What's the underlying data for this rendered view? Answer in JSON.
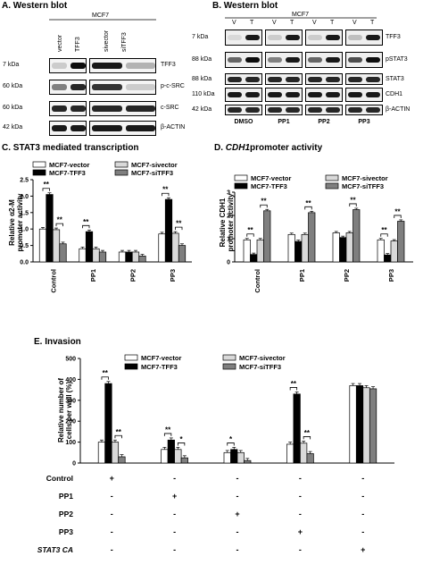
{
  "panelA": {
    "title": "A. Western blot",
    "cell_line": "MCF7",
    "lanes": [
      "vector",
      "TFF3",
      "sivector",
      "siTFF3"
    ],
    "rows": [
      {
        "kda": "7 kDa",
        "protein": "TFF3",
        "intensity": [
          0.2,
          0.95,
          0.9,
          0.3
        ]
      },
      {
        "kda": "60 kDa",
        "protein": "p-c-SRC",
        "intensity": [
          0.5,
          0.85,
          0.8,
          0.2
        ]
      },
      {
        "kda": "60 kDa",
        "protein": "c-SRC",
        "intensity": [
          0.85,
          0.85,
          0.85,
          0.85
        ]
      },
      {
        "kda": "42 kDa",
        "protein": "β-ACTIN",
        "intensity": [
          0.9,
          0.9,
          0.9,
          0.9
        ]
      }
    ]
  },
  "panelB": {
    "title": "B. Western blot",
    "cell_line": "MCF7",
    "lane_letters": [
      "V",
      "T",
      "V",
      "T",
      "V",
      "T",
      "V",
      "T"
    ],
    "groups": [
      "DMSO",
      "PP1",
      "PP2",
      "PP3"
    ],
    "rows": [
      {
        "kda": "7 kDa",
        "protein": "TFF3"
      },
      {
        "kda": "88 kDa",
        "protein": "pSTAT3"
      },
      {
        "kda": "88 kDa",
        "protein": "STAT3"
      },
      {
        "kda": "110 kDa",
        "protein": "CDH1"
      },
      {
        "kda": "42 kDa",
        "protein": "β-ACTIN"
      }
    ]
  },
  "panelC": {
    "title": "C. STAT3 mediated transcription",
    "ylabel_line1": "Relative α2-M",
    "ylabel_line2": "promoter activity"
  },
  "panelD": {
    "title_prefix": "D. ",
    "title_italic": "CDH1",
    "title_suffix": "promoter activity",
    "ylabel_line1": "Relative CDH1",
    "ylabel_line2": "promoter activity"
  },
  "panelE": {
    "title": "E. Invasion",
    "ylabel_line1": "Relative number of",
    "ylabel_line2": "cells per well (%)",
    "conditions": [
      "Control",
      "PP1",
      "PP2",
      "PP3",
      "STAT3 CA"
    ],
    "signs": [
      [
        "+",
        "-",
        "-",
        "-",
        "-"
      ],
      [
        "-",
        "+",
        "-",
        "-",
        "-"
      ],
      [
        "-",
        "-",
        "+",
        "-",
        "-"
      ],
      [
        "-",
        "-",
        "-",
        "+",
        "-"
      ],
      [
        "-",
        "-",
        "-",
        "-",
        "+"
      ]
    ]
  },
  "legend_labels": [
    "MCF7-vector",
    "MCF7-TFF3",
    "MCF7-sivector",
    "MCF7-siTFF3"
  ],
  "series_colors": [
    "#ffffff",
    "#000000",
    "#d9d9d9",
    "#7f7f7f"
  ],
  "chart_data": [
    {
      "type": "bar",
      "ylabel": "Relative α2-M promoter activity",
      "categories": [
        "Control",
        "PP1",
        "PP2",
        "PP3"
      ],
      "series": [
        {
          "name": "MCF7-vector",
          "values": [
            1.0,
            0.4,
            0.3,
            0.85
          ]
        },
        {
          "name": "MCF7-TFF3",
          "values": [
            2.05,
            0.92,
            0.3,
            1.9
          ]
        },
        {
          "name": "MCF7-sivector",
          "values": [
            0.98,
            0.4,
            0.3,
            0.87
          ]
        },
        {
          "name": "MCF7-siTFF3",
          "values": [
            0.55,
            0.3,
            0.18,
            0.5
          ]
        }
      ],
      "ylim": [
        0,
        2.5
      ],
      "yticks": [
        "0.0",
        "0.5",
        "1.0",
        "1.5",
        "2.0",
        "2.5"
      ],
      "significance": [
        {
          "cat": 0,
          "pair": [
            0,
            1
          ],
          "label": "**"
        },
        {
          "cat": 0,
          "pair": [
            2,
            3
          ],
          "label": "**"
        },
        {
          "cat": 1,
          "pair": [
            0,
            1
          ],
          "label": "**"
        },
        {
          "cat": 3,
          "pair": [
            0,
            1
          ],
          "label": "**"
        },
        {
          "cat": 3,
          "pair": [
            2,
            3
          ],
          "label": "**"
        }
      ]
    },
    {
      "type": "bar",
      "ylabel": "Relative CDH1 promoter activity",
      "categories": [
        "Control",
        "PP1",
        "PP2",
        "PP3"
      ],
      "series": [
        {
          "name": "MCF7-vector",
          "values": [
            0.95,
            1.18,
            1.25,
            0.95
          ]
        },
        {
          "name": "MCF7-TFF3",
          "values": [
            0.32,
            0.88,
            1.05,
            0.3
          ]
        },
        {
          "name": "MCF7-sivector",
          "values": [
            0.95,
            1.18,
            1.25,
            0.9
          ]
        },
        {
          "name": "MCF7-siTFF3",
          "values": [
            2.2,
            2.12,
            2.25,
            1.75
          ]
        }
      ],
      "ylim": [
        0,
        3
      ],
      "yticks": [
        "0",
        "1",
        "2",
        "3"
      ],
      "significance": [
        {
          "cat": 0,
          "pair": [
            0,
            1
          ],
          "label": "**"
        },
        {
          "cat": 0,
          "pair": [
            2,
            3
          ],
          "label": "**"
        },
        {
          "cat": 1,
          "pair": [
            2,
            3
          ],
          "label": "**"
        },
        {
          "cat": 2,
          "pair": [
            2,
            3
          ],
          "label": "**"
        },
        {
          "cat": 3,
          "pair": [
            0,
            1
          ],
          "label": "**"
        },
        {
          "cat": 3,
          "pair": [
            2,
            3
          ],
          "label": "**"
        }
      ]
    },
    {
      "type": "bar",
      "ylabel": "Relative number of cells per well (%)",
      "categories": [
        "Control",
        "PP1",
        "PP2",
        "PP3",
        "STAT3 CA"
      ],
      "series": [
        {
          "name": "MCF7-vector",
          "values": [
            100,
            65,
            50,
            90,
            370
          ]
        },
        {
          "name": "MCF7-TFF3",
          "values": [
            380,
            110,
            65,
            330,
            370
          ]
        },
        {
          "name": "MCF7-sivector",
          "values": [
            100,
            65,
            50,
            95,
            360
          ]
        },
        {
          "name": "MCF7-siTFF3",
          "values": [
            30,
            25,
            12,
            45,
            355
          ]
        }
      ],
      "ylim": [
        0,
        500
      ],
      "yticks": [
        "0",
        "100",
        "200",
        "300",
        "400",
        "500"
      ],
      "significance": [
        {
          "cat": 0,
          "pair": [
            0,
            1
          ],
          "label": "**"
        },
        {
          "cat": 0,
          "pair": [
            2,
            3
          ],
          "label": "**"
        },
        {
          "cat": 1,
          "pair": [
            0,
            1
          ],
          "label": "**"
        },
        {
          "cat": 1,
          "pair": [
            2,
            3
          ],
          "label": "*"
        },
        {
          "cat": 2,
          "pair": [
            0,
            1
          ],
          "label": "*"
        },
        {
          "cat": 3,
          "pair": [
            0,
            1
          ],
          "label": "**"
        },
        {
          "cat": 3,
          "pair": [
            2,
            3
          ],
          "label": "**"
        }
      ]
    }
  ]
}
